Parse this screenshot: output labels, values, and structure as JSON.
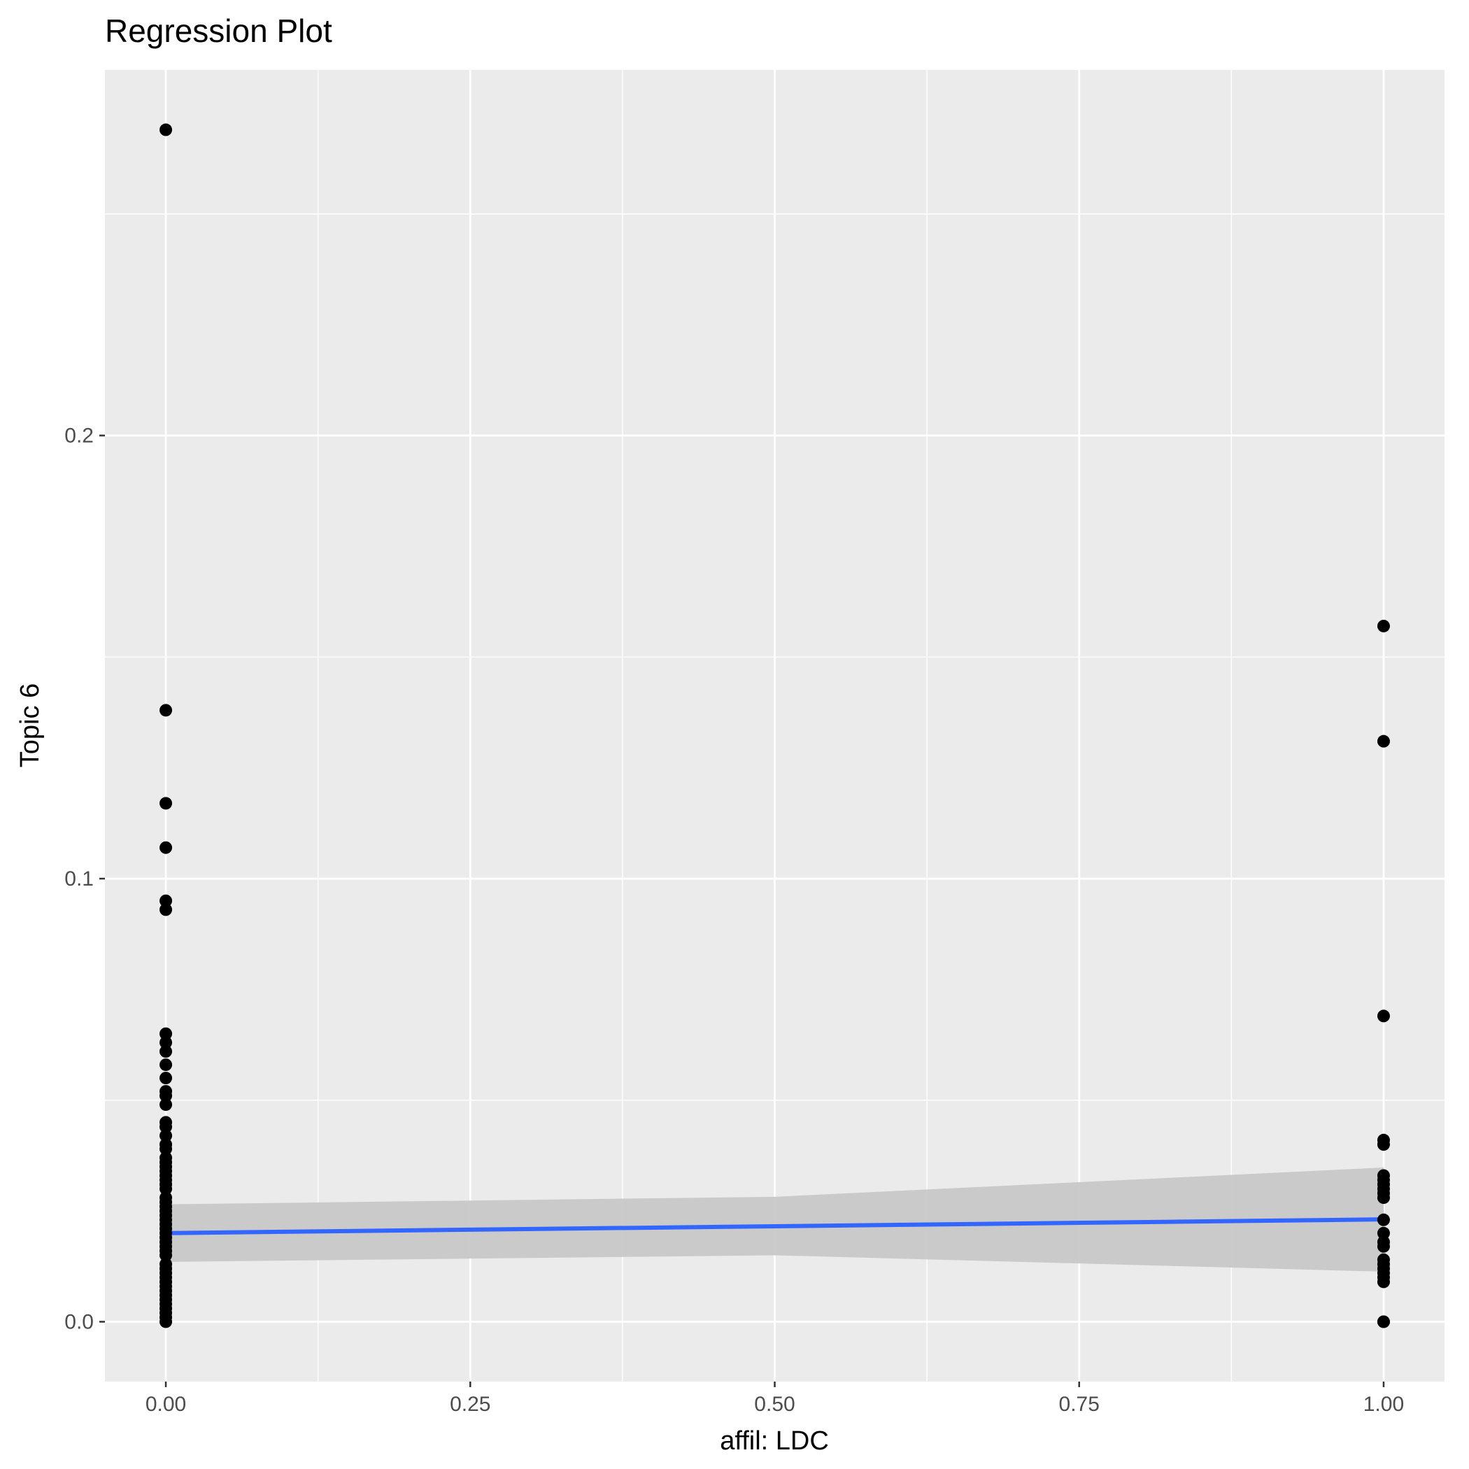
{
  "chart_data": {
    "type": "scatter",
    "title": "Regression Plot",
    "xlabel": "affil: LDC",
    "ylabel": "Topic 6",
    "xlim": [
      -0.05,
      1.05
    ],
    "ylim": [
      -0.0135,
      0.2825
    ],
    "x_ticks": [
      0.0,
      0.25,
      0.5,
      0.75,
      1.0
    ],
    "x_tick_labels": [
      "0.00",
      "0.25",
      "0.50",
      "0.75",
      "1.00"
    ],
    "y_ticks": [
      0.0,
      0.1,
      0.2
    ],
    "y_tick_labels": [
      "0.0",
      "0.1",
      "0.2"
    ],
    "grid": true,
    "colors": {
      "panel_background": "#ebebeb",
      "grid": "#ffffff",
      "points": "#000000",
      "fit_line": "#3366ff",
      "confidence_band": "#c8c8c8"
    },
    "points": {
      "x0": [
        0.269,
        0.138,
        0.117,
        0.107,
        0.095,
        0.093,
        0.065,
        0.063,
        0.061,
        0.058,
        0.055,
        0.052,
        0.051,
        0.049,
        0.045,
        0.044,
        0.042,
        0.04,
        0.039,
        0.037,
        0.036,
        0.035,
        0.034,
        0.033,
        0.032,
        0.031,
        0.03,
        0.028,
        0.027,
        0.026,
        0.025,
        0.024,
        0.023,
        0.022,
        0.021,
        0.02,
        0.019,
        0.018,
        0.017,
        0.016,
        0.015,
        0.013,
        0.012,
        0.011,
        0.01,
        0.009,
        0.008,
        0.007,
        0.006,
        0.005,
        0.004,
        0.003,
        0.002,
        0.001,
        0.0
      ],
      "x1": [
        0.157,
        0.131,
        0.069,
        0.04,
        0.041,
        0.033,
        0.032,
        0.031,
        0.03,
        0.029,
        0.028,
        0.023,
        0.02,
        0.018,
        0.017,
        0.014,
        0.013,
        0.012,
        0.011,
        0.01,
        0.009,
        0.0,
        0.0
      ]
    },
    "fit_line": {
      "x": [
        0.0,
        1.0
      ],
      "y": [
        0.02,
        0.0231
      ]
    },
    "confidence_band": {
      "x": [
        0.0,
        0.5,
        1.0
      ],
      "lower": [
        0.0135,
        0.015,
        0.0113
      ],
      "upper": [
        0.0265,
        0.0282,
        0.0348
      ]
    }
  }
}
